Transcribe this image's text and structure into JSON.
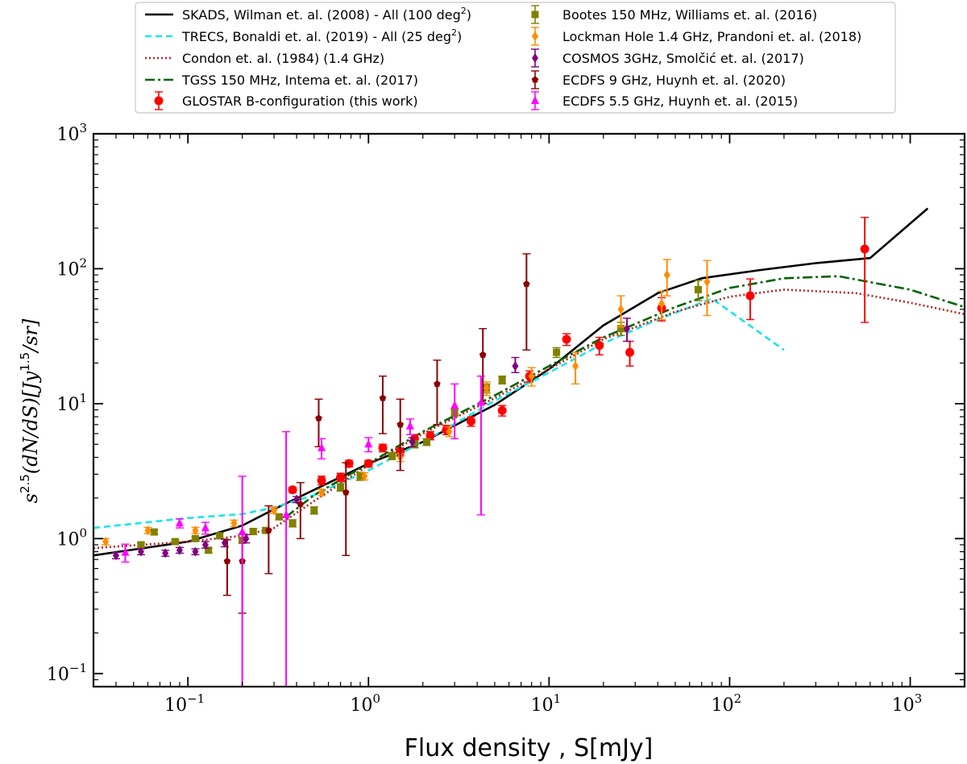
{
  "chart_data": {
    "type": "scatter",
    "title": "",
    "xlabel": "Flux density , S[mJy]",
    "ylabel": "s^{2.5}(dN/dS)[Jy^{1.5}/sr]",
    "xscale": "log",
    "yscale": "log",
    "xlim": [
      0.03,
      2000
    ],
    "ylim": [
      0.08,
      1000
    ],
    "legend_position": "top",
    "x_ticks": [
      {
        "value": 0.1,
        "base": "10",
        "exp": "−1"
      },
      {
        "value": 1,
        "base": "10",
        "exp": "0"
      },
      {
        "value": 10,
        "base": "10",
        "exp": "1"
      },
      {
        "value": 100,
        "base": "10",
        "exp": "2"
      },
      {
        "value": 1000,
        "base": "10",
        "exp": "3"
      }
    ],
    "y_ticks": [
      {
        "value": 0.1,
        "base": "10",
        "exp": "−1"
      },
      {
        "value": 1,
        "base": "10",
        "exp": "0"
      },
      {
        "value": 10,
        "base": "10",
        "exp": "1"
      },
      {
        "value": 100,
        "base": "10",
        "exp": "2"
      },
      {
        "value": 1000,
        "base": "10",
        "exp": "3"
      }
    ],
    "lines": [
      {
        "name": "SKADS, Wilman et. al. (2008) - All (100 deg",
        "sup": "2",
        "name_end": ")",
        "color": "#000000",
        "dash": "",
        "x": [
          0.03,
          0.1,
          0.2,
          0.3,
          0.5,
          1,
          2,
          5,
          10,
          20,
          40,
          70,
          150,
          300,
          600,
          1250
        ],
        "y": [
          0.75,
          0.95,
          1.25,
          1.65,
          2.3,
          3.6,
          5.2,
          9.8,
          18,
          38,
          66,
          85,
          98,
          110,
          120,
          280
        ]
      },
      {
        "name": "TRECS, Bonaldi et. al. (2019) - All (25 deg",
        "sup": "2",
        "name_end": ")",
        "color": "#17e6e6",
        "dash": "8 5",
        "x": [
          0.03,
          0.1,
          0.2,
          0.3,
          0.5,
          1,
          2,
          5,
          10,
          20,
          40,
          80,
          200
        ],
        "y": [
          1.2,
          1.42,
          1.52,
          1.7,
          2.1,
          3.2,
          5.2,
          10.5,
          17,
          28,
          42,
          60,
          25
        ]
      },
      {
        "name": "Condon et. al. (1984) (1.4 GHz)",
        "color": "#b22222",
        "dash": "2 3",
        "x": [
          0.03,
          0.1,
          0.2,
          0.3,
          0.5,
          1,
          2,
          5,
          10,
          20,
          50,
          100,
          200,
          500,
          1000,
          2000
        ],
        "y": [
          0.85,
          0.95,
          1.05,
          1.2,
          1.9,
          3.5,
          6,
          11,
          18,
          30,
          48,
          62,
          70,
          66,
          56,
          46
        ]
      },
      {
        "name": "TGSS 150 MHz, Intema et. al. (2017)",
        "color": "#006400",
        "dash": "12 4 3 4",
        "x": [
          0.35,
          0.5,
          1,
          2,
          5,
          10,
          20,
          50,
          100,
          200,
          400,
          1000,
          2000
        ],
        "y": [
          1.45,
          2.1,
          3.6,
          6.2,
          11.5,
          19,
          31,
          52,
          72,
          85,
          88,
          70,
          52
        ]
      }
    ],
    "series": [
      {
        "name": "GLOSTAR B-configuration (this work)",
        "color": "#ff0000",
        "marker": "circle",
        "points": [
          [
            0.38,
            2.3,
            2.2,
            2.4
          ],
          [
            0.55,
            2.7,
            2.5,
            2.9
          ],
          [
            0.7,
            2.85,
            2.65,
            3.05
          ],
          [
            0.78,
            3.6,
            3.4,
            3.8
          ],
          [
            1.0,
            3.6,
            3.4,
            3.8
          ],
          [
            1.2,
            4.7,
            4.4,
            5.0
          ],
          [
            1.5,
            4.4,
            4.1,
            4.7
          ],
          [
            1.8,
            5.5,
            5.1,
            5.9
          ],
          [
            2.2,
            5.8,
            5.4,
            6.2
          ],
          [
            2.7,
            6.4,
            5.9,
            6.9
          ],
          [
            3.7,
            7.4,
            6.8,
            8.0
          ],
          [
            5.5,
            8.9,
            8.1,
            9.7
          ],
          [
            7.8,
            16,
            14.5,
            17.5
          ],
          [
            12.5,
            30,
            27,
            33
          ],
          [
            19,
            27,
            23,
            31
          ],
          [
            28,
            24,
            19,
            29
          ],
          [
            42,
            51,
            41,
            61
          ],
          [
            130,
            63,
            42,
            84
          ],
          [
            560,
            140,
            40,
            240
          ]
        ]
      },
      {
        "name": "Bootes 150 MHz, Williams et. al. (2016)",
        "color": "#808000",
        "marker": "square",
        "points": [
          [
            0.055,
            0.9,
            0.87,
            0.93
          ],
          [
            0.065,
            1.12,
            1.08,
            1.16
          ],
          [
            0.085,
            0.95,
            0.92,
            0.98
          ],
          [
            0.11,
            1.0,
            0.97,
            1.03
          ],
          [
            0.13,
            0.82,
            0.79,
            0.85
          ],
          [
            0.15,
            1.05,
            1.0,
            1.1
          ],
          [
            0.2,
            0.97,
            0.93,
            1.01
          ],
          [
            0.23,
            1.13,
            1.07,
            1.19
          ],
          [
            0.27,
            1.15,
            1.1,
            1.2
          ],
          [
            0.32,
            1.45,
            1.38,
            1.52
          ],
          [
            0.38,
            1.3,
            1.22,
            1.38
          ],
          [
            0.5,
            1.62,
            1.52,
            1.72
          ],
          [
            0.7,
            2.4,
            2.25,
            2.55
          ],
          [
            0.9,
            2.9,
            2.7,
            3.1
          ],
          [
            1.35,
            4.1,
            3.85,
            4.35
          ],
          [
            1.8,
            5.0,
            4.7,
            5.3
          ],
          [
            2.1,
            5.2,
            4.9,
            5.5
          ],
          [
            3.0,
            8.6,
            8.1,
            9.1
          ],
          [
            4.5,
            13,
            12,
            14
          ],
          [
            5.5,
            15,
            14,
            16
          ],
          [
            11,
            24,
            22,
            26
          ],
          [
            25,
            36,
            32,
            40
          ],
          [
            67,
            70,
            58,
            82
          ]
        ]
      },
      {
        "name": "Lockman Hole 1.4 GHz, Prandoni et. al. (2018)",
        "color": "#ff8c00",
        "marker": "diamond",
        "points": [
          [
            0.035,
            0.95,
            0.9,
            1.0
          ],
          [
            0.06,
            1.15,
            1.09,
            1.21
          ],
          [
            0.11,
            1.15,
            1.09,
            1.21
          ],
          [
            0.18,
            1.3,
            1.23,
            1.37
          ],
          [
            0.3,
            1.62,
            1.54,
            1.7
          ],
          [
            0.55,
            2.2,
            2.08,
            2.32
          ],
          [
            0.95,
            2.9,
            2.72,
            3.08
          ],
          [
            1.5,
            4.0,
            3.72,
            4.28
          ],
          [
            2.8,
            6.2,
            5.7,
            6.7
          ],
          [
            4.5,
            13,
            11.5,
            14.5
          ],
          [
            8,
            16,
            13.5,
            18.5
          ],
          [
            14,
            19,
            14,
            24
          ],
          [
            25,
            50,
            37,
            63
          ],
          [
            42,
            55,
            42,
            68
          ],
          [
            45,
            90,
            63,
            117
          ],
          [
            75,
            80,
            45,
            115
          ]
        ]
      },
      {
        "name": "COSMOS 3GHz, Smolčić et. al. (2017)",
        "color": "#800080",
        "marker": "diamond",
        "points": [
          [
            0.04,
            0.75,
            0.71,
            0.79
          ],
          [
            0.055,
            0.8,
            0.76,
            0.84
          ],
          [
            0.075,
            0.78,
            0.74,
            0.82
          ],
          [
            0.09,
            0.82,
            0.78,
            0.86
          ],
          [
            0.11,
            0.8,
            0.76,
            0.84
          ],
          [
            0.125,
            0.9,
            0.85,
            0.95
          ],
          [
            0.16,
            0.93,
            0.87,
            0.99
          ],
          [
            0.21,
            1.0,
            0.93,
            1.07
          ],
          [
            0.4,
            1.95,
            1.85,
            2.05
          ],
          [
            1.75,
            5.2,
            4.8,
            5.6
          ],
          [
            6.5,
            19,
            17,
            22
          ],
          [
            27,
            36,
            29,
            43
          ]
        ]
      },
      {
        "name": "ECDFS 9 GHz, Huynh et. al. (2020)",
        "color": "#8b0000",
        "marker": "pentagon",
        "points": [
          [
            0.165,
            0.68,
            0.38,
            0.98
          ],
          [
            0.2,
            0.68,
            0.28,
            1.08
          ],
          [
            0.28,
            1.15,
            0.55,
            1.75
          ],
          [
            0.42,
            1.8,
            1.0,
            2.6
          ],
          [
            0.53,
            7.8,
            4.8,
            10.8
          ],
          [
            0.75,
            2.2,
            0.75,
            3.65
          ],
          [
            1.2,
            11,
            6,
            16
          ],
          [
            1.5,
            7,
            3.2,
            10.8
          ],
          [
            2.4,
            14,
            7,
            21
          ],
          [
            4.3,
            23,
            10,
            36
          ],
          [
            7.5,
            77,
            25,
            129
          ]
        ]
      },
      {
        "name": "ECDFS 5.5 GHz, Huynh et. al. (2015)",
        "color": "#ff00ff",
        "marker": "triangle",
        "points": [
          [
            0.045,
            0.79,
            0.67,
            0.91
          ],
          [
            0.09,
            1.3,
            1.2,
            1.4
          ],
          [
            0.125,
            1.2,
            1.08,
            1.32
          ],
          [
            0.2,
            1.12,
            0.08,
            2.9
          ],
          [
            0.35,
            1.5,
            0.08,
            6.2
          ],
          [
            0.55,
            4.7,
            3.9,
            5.5
          ],
          [
            1.0,
            5.0,
            4.4,
            5.6
          ],
          [
            1.7,
            6.8,
            5.9,
            7.7
          ],
          [
            3.0,
            9.7,
            5.5,
            14
          ],
          [
            4.2,
            10.2,
            1.5,
            16
          ]
        ]
      }
    ]
  }
}
